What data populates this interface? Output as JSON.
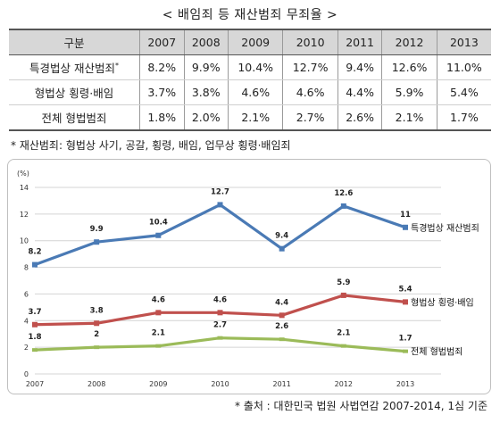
{
  "title": "< 배임죄 등 재산범죄 무죄율 >",
  "table": {
    "header_label": "구분",
    "years": [
      "2007",
      "2008",
      "2009",
      "2010",
      "2011",
      "2012",
      "2013"
    ],
    "rows": [
      {
        "label": "특경법상 재산범죄",
        "mark": "*",
        "values": [
          "8.2%",
          "9.9%",
          "10.4%",
          "12.7%",
          "9.4%",
          "12.6%",
          "11.0%"
        ]
      },
      {
        "label": "형법상 횡령·배임",
        "mark": "",
        "values": [
          "3.7%",
          "3.8%",
          "4.6%",
          "4.6%",
          "4.4%",
          "5.9%",
          "5.4%"
        ]
      },
      {
        "label": "전체 형법범죄",
        "mark": "",
        "values": [
          "1.8%",
          "2.0%",
          "2.1%",
          "2.7%",
          "2.6%",
          "2.1%",
          "1.7%"
        ]
      }
    ]
  },
  "footnote": "* 재산범죄: 형법상 사기, 공갈, 횡령, 배임, 업무상 횡령·배임죄",
  "source": "* 출처 : 대한민국 법원 사법연감 2007-2014, 1심 기준",
  "chart_data": {
    "type": "line",
    "ylabel": "(%)",
    "categories": [
      "2007",
      "2008",
      "2009",
      "2010",
      "2011",
      "2012",
      "2013"
    ],
    "ylim": [
      0,
      14
    ],
    "yticks": [
      0,
      2,
      4,
      6,
      8,
      10,
      12,
      14
    ],
    "grid": true,
    "legend_placement": "end-of-line labels",
    "series": [
      {
        "name": "특경법상 재산범죄",
        "color": "#4a7ab5",
        "values": [
          8.2,
          9.9,
          10.4,
          12.7,
          9.4,
          12.6,
          11
        ],
        "labels": [
          "8.2",
          "9.9",
          "10.4",
          "12.7",
          "9.4",
          "12.6",
          "11"
        ]
      },
      {
        "name": "형법상 횡령·배임",
        "color": "#c0504d",
        "values": [
          3.7,
          3.8,
          4.6,
          4.6,
          4.4,
          5.9,
          5.4
        ],
        "labels": [
          "3.7",
          "3.8",
          "4.6",
          "4.6",
          "4.4",
          "5.9",
          "5.4"
        ]
      },
      {
        "name": "전체 형법범죄",
        "color": "#9bbb59",
        "values": [
          1.8,
          2,
          2.1,
          2.7,
          2.6,
          2.1,
          1.7
        ],
        "labels": [
          "1.8",
          "2",
          "2.1",
          "2.7",
          "2.6",
          "2.1",
          "1.7"
        ]
      }
    ]
  }
}
